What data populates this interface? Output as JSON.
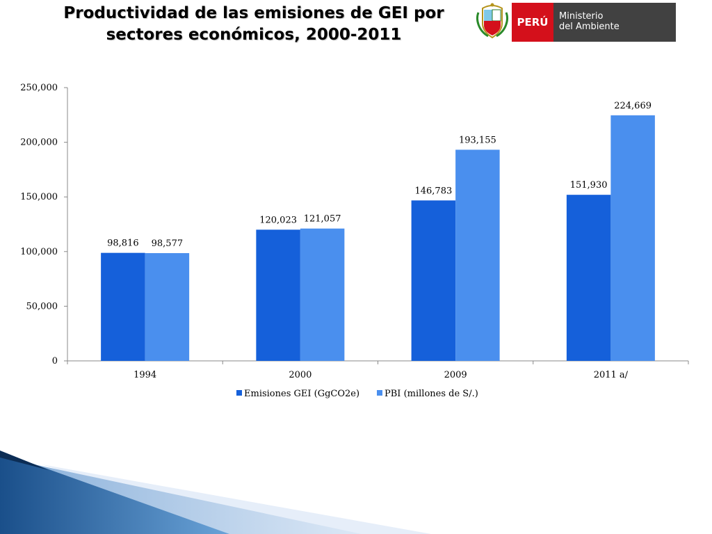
{
  "slide": {
    "title_line1": "Productividad de las emisiones de GEI por",
    "title_line2": "sectores económicos, 2000-2011"
  },
  "logo": {
    "country": "PERÚ",
    "ministry_line1": "Ministerio",
    "ministry_line2": "del Ambiente",
    "colors": {
      "red": "#D4101B",
      "dark": "#414141"
    }
  },
  "chart_data": {
    "type": "bar",
    "categories": [
      "1994",
      "2000",
      "2009",
      "2011 a/"
    ],
    "series": [
      {
        "name": "Emisiones GEI (GgCO2e)",
        "values": [
          98816,
          120023,
          146783,
          151930
        ],
        "labels": [
          "98,816",
          "120,023",
          "146,783",
          "151,930"
        ],
        "color": "#1560DA"
      },
      {
        "name": "PBI (millones de S/.)",
        "values": [
          98577,
          121057,
          193155,
          224669
        ],
        "labels": [
          "98,577",
          "121,057",
          "193,155",
          "224,669"
        ],
        "color": "#4A8FEE"
      }
    ],
    "ylim": [
      0,
      250000
    ],
    "yticks": [
      0,
      50000,
      100000,
      150000,
      200000,
      250000
    ],
    "ytick_labels": [
      "0",
      "50,000",
      "100,000",
      "150,000",
      "200,000",
      "250,000"
    ],
    "grid": false,
    "legend": "bottom"
  }
}
